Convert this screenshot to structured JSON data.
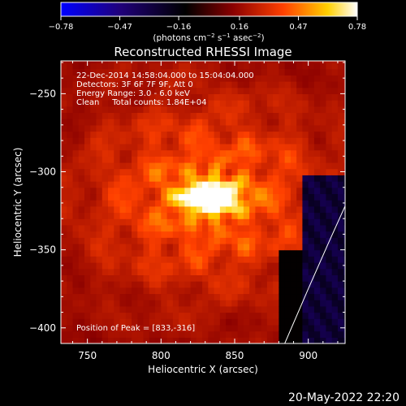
{
  "chart_data": {
    "type": "heatmap",
    "title": "Reconstructed RHESSI Image",
    "xlabel": "Heliocentric X (arcsec)",
    "ylabel": "Heliocentric Y (arcsec)",
    "xlim": [
      732,
      925
    ],
    "ylim": [
      -410,
      -229
    ],
    "x_ticks": [
      750,
      800,
      850,
      900
    ],
    "y_ticks": [
      -250,
      -300,
      -350,
      -400
    ],
    "x_tick_labels": [
      "750",
      "800",
      "850",
      "900"
    ],
    "y_tick_labels": [
      "−250",
      "−300",
      "−350",
      "−400"
    ],
    "colorbar": {
      "min": -0.78,
      "max": 0.78,
      "tick_values": [
        -0.78,
        -0.47,
        -0.16,
        0.16,
        0.47,
        0.78
      ],
      "tick_labels": [
        "−0.78",
        "−0.47",
        "−0.16",
        "0.16",
        "0.47",
        "0.78"
      ],
      "unit_label_parts": [
        "(photons cm",
        "−2",
        " s",
        "−1",
        " asec",
        "−2",
        ")"
      ]
    },
    "annotations": [
      "22-Dec-2014 14:58:04.000 to 15:04:04.000",
      "Detectors: 3F 6F 7F 9F, Att 0",
      "Energy Range: 3.0 - 6.0 keV",
      "Clean     Total counts: 1.84E+04"
    ],
    "peak_label": "Position of Peak = [833,-316]",
    "peak": {
      "x": 833,
      "y": -316,
      "value": 0.78
    },
    "limb_curve": [
      [
        884,
        -410
      ],
      [
        900,
        -375
      ],
      [
        914,
        -345
      ],
      [
        925,
        -322
      ]
    ],
    "colors": {
      "background": "#000000",
      "text": "#ffffff",
      "colormap": [
        "#0000ff",
        "#20007a",
        "#000000",
        "#8a0000",
        "#ff4000",
        "#ffd000",
        "#ffffff"
      ]
    }
  },
  "footer": {
    "date": "20-May-2022 22:20"
  }
}
